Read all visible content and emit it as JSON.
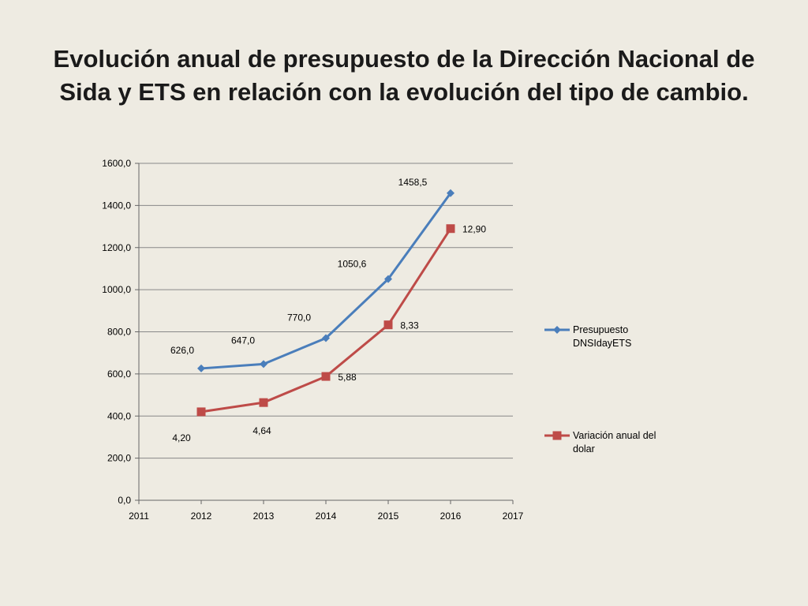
{
  "slide": {
    "title_line1": "Evolución anual de presupuesto de la Dirección Nacional de",
    "title_line2": "Sida y ETS en relación con la evolución del tipo de cambio."
  },
  "chart_data": {
    "type": "line",
    "title": "",
    "xlabel": "",
    "ylabel": "",
    "xlim": [
      2011,
      2017
    ],
    "ylim": [
      0,
      1600
    ],
    "x_ticks": [
      "2011",
      "2012",
      "2013",
      "2014",
      "2015",
      "2016",
      "2017"
    ],
    "y_ticks": [
      "0,0",
      "200,0",
      "400,0",
      "600,0",
      "800,0",
      "1000,0",
      "1200,0",
      "1400,0",
      "1600,0"
    ],
    "grid": "horizontal",
    "legend": "right",
    "series": [
      {
        "name": "Presupuesto DNSIdayETS",
        "legend_lines": [
          "Presupuesto",
          "DNSIdayETS"
        ],
        "color": "#4a7ebb",
        "marker": "diamond",
        "x": [
          2012,
          2013,
          2014,
          2015,
          2016
        ],
        "values": [
          626,
          647,
          770,
          1050.6,
          1458.5
        ],
        "labels": [
          "626,0",
          "647,0",
          "770,0",
          "1050,6",
          "1458,5"
        ]
      },
      {
        "name": "Variación anual del dolar",
        "legend_lines": [
          "Variación anual del",
          "dolar"
        ],
        "color": "#be4b48",
        "marker": "square",
        "x": [
          2012,
          2013,
          2014,
          2015,
          2016
        ],
        "values": [
          420,
          464,
          588,
          833,
          1290
        ],
        "labels": [
          "4,20",
          "4,64",
          "5,88",
          "8,33",
          "12,90"
        ]
      }
    ]
  }
}
